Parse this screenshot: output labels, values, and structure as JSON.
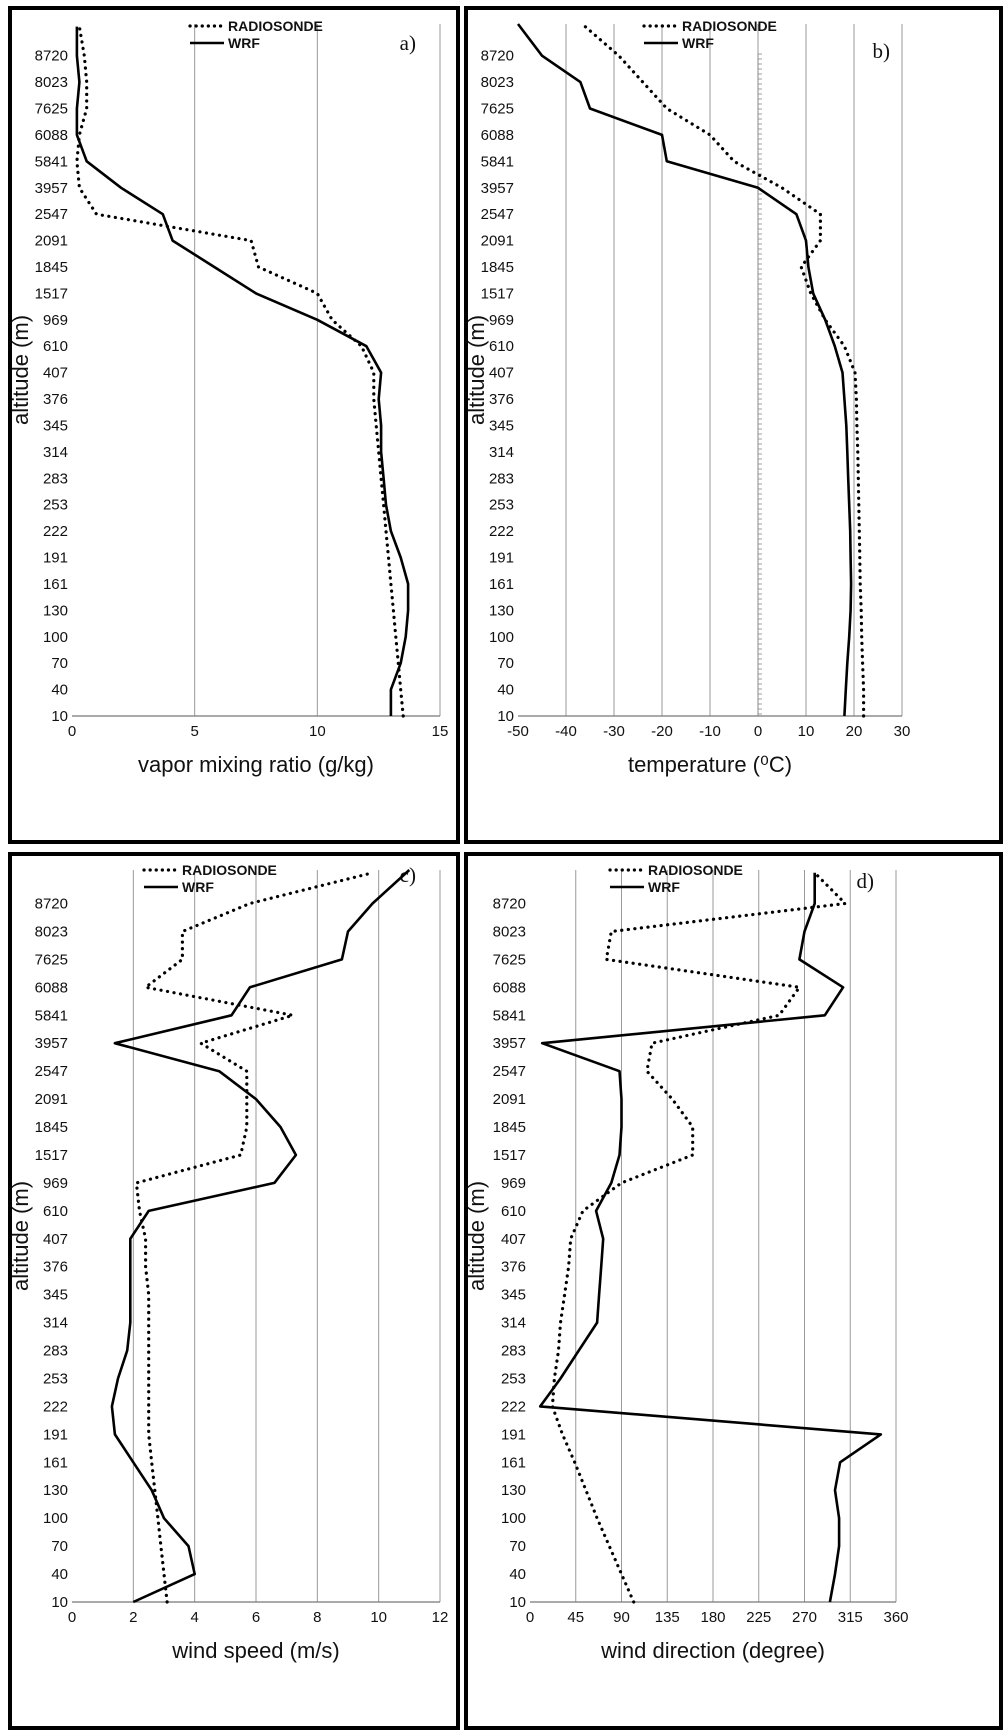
{
  "chart_data": [
    {
      "type": "line",
      "panel_label": "a)",
      "xlabel": "vapor mixing ratio (g/kg)",
      "ylabel": "altitude (m)",
      "xlim": [
        0,
        15
      ],
      "xticks": [
        "0",
        "5",
        "10",
        "15"
      ],
      "ylevels": [
        "10",
        "40",
        "70",
        "100",
        "130",
        "161",
        "191",
        "222",
        "253",
        "283",
        "314",
        "345",
        "376",
        "407",
        "610",
        "969",
        "1517",
        "1845",
        "2091",
        "2547",
        "3957",
        "5841",
        "6088",
        "7625",
        "8023",
        "8720"
      ],
      "y_index_range": [
        0,
        26.2
      ],
      "legend": [
        "RADIOSONDE",
        "WRF"
      ],
      "series": [
        {
          "name": "RADIOSONDE",
          "style": "dotted",
          "points": [
            [
              13.5,
              0
            ],
            [
              13.4,
              1
            ],
            [
              13.3,
              2
            ],
            [
              13.2,
              3
            ],
            [
              13.1,
              4
            ],
            [
              13.0,
              5
            ],
            [
              12.9,
              6
            ],
            [
              12.8,
              7
            ],
            [
              12.7,
              8
            ],
            [
              12.6,
              9
            ],
            [
              12.5,
              10
            ],
            [
              12.4,
              11
            ],
            [
              12.3,
              12
            ],
            [
              12.3,
              13
            ],
            [
              11.8,
              14
            ],
            [
              10.6,
              15
            ],
            [
              10.0,
              16
            ],
            [
              7.6,
              17
            ],
            [
              7.3,
              18
            ],
            [
              1.0,
              19
            ],
            [
              0.3,
              20
            ],
            [
              0.2,
              21
            ],
            [
              0.3,
              22
            ],
            [
              0.6,
              23
            ],
            [
              0.6,
              24
            ],
            [
              0.5,
              25
            ],
            [
              0.3,
              26.1
            ]
          ]
        },
        {
          "name": "WRF",
          "style": "solid",
          "points": [
            [
              13.0,
              0
            ],
            [
              13.0,
              1
            ],
            [
              13.4,
              2
            ],
            [
              13.6,
              3
            ],
            [
              13.7,
              4
            ],
            [
              13.7,
              5
            ],
            [
              13.4,
              6
            ],
            [
              13.0,
              7
            ],
            [
              12.8,
              8
            ],
            [
              12.7,
              9
            ],
            [
              12.6,
              10
            ],
            [
              12.6,
              11
            ],
            [
              12.5,
              12
            ],
            [
              12.6,
              13
            ],
            [
              12.0,
              14
            ],
            [
              10.0,
              15
            ],
            [
              7.5,
              16
            ],
            [
              5.8,
              17
            ],
            [
              4.1,
              18
            ],
            [
              3.7,
              19
            ],
            [
              2.0,
              20
            ],
            [
              0.6,
              21
            ],
            [
              0.2,
              22
            ],
            [
              0.2,
              23
            ],
            [
              0.3,
              24
            ],
            [
              0.2,
              25
            ],
            [
              0.2,
              26.1
            ]
          ]
        }
      ]
    },
    {
      "type": "line",
      "panel_label": "b)",
      "xlabel": "temperature (⁰C)",
      "ylabel": "altitude (m)",
      "xlim": [
        -50,
        30
      ],
      "xticks": [
        "-50",
        "-40",
        "-30",
        "-20",
        "-10",
        "0",
        "10",
        "20",
        "30"
      ],
      "ylevels": [
        "10",
        "40",
        "70",
        "100",
        "130",
        "161",
        "191",
        "222",
        "253",
        "283",
        "314",
        "345",
        "376",
        "407",
        "610",
        "969",
        "1517",
        "1845",
        "2091",
        "2547",
        "3957",
        "5841",
        "6088",
        "7625",
        "8023",
        "8720"
      ],
      "y_index_range": [
        0,
        26.2
      ],
      "legend": [
        "RADIOSONDE",
        "WRF"
      ],
      "series": [
        {
          "name": "RADIOSONDE",
          "style": "dotted",
          "points": [
            [
              22.0,
              0
            ],
            [
              22.0,
              1
            ],
            [
              21.8,
              2
            ],
            [
              21.6,
              3
            ],
            [
              21.5,
              4
            ],
            [
              21.3,
              5
            ],
            [
              21.2,
              6
            ],
            [
              21.1,
              7
            ],
            [
              21.0,
              8
            ],
            [
              20.9,
              9
            ],
            [
              20.8,
              10
            ],
            [
              20.6,
              11
            ],
            [
              20.5,
              12
            ],
            [
              20.2,
              13
            ],
            [
              18.0,
              14
            ],
            [
              14.0,
              15
            ],
            [
              11.0,
              16
            ],
            [
              9.0,
              17
            ],
            [
              13.0,
              18
            ],
            [
              13.0,
              19
            ],
            [
              5.0,
              20
            ],
            [
              -5.0,
              21
            ],
            [
              -10.0,
              22
            ],
            [
              -19.0,
              23
            ],
            [
              -24.0,
              24
            ],
            [
              -29.0,
              25
            ],
            [
              -36.0,
              26.1
            ]
          ]
        },
        {
          "name": "WRF",
          "style": "solid",
          "points": [
            [
              18.0,
              0
            ],
            [
              18.3,
              1
            ],
            [
              18.6,
              2
            ],
            [
              19.0,
              3
            ],
            [
              19.3,
              4
            ],
            [
              19.4,
              5
            ],
            [
              19.3,
              6
            ],
            [
              19.2,
              7
            ],
            [
              19.0,
              8
            ],
            [
              18.8,
              9
            ],
            [
              18.6,
              10
            ],
            [
              18.4,
              11
            ],
            [
              18.0,
              12
            ],
            [
              17.6,
              13
            ],
            [
              16.0,
              14
            ],
            [
              14.0,
              15
            ],
            [
              11.5,
              16
            ],
            [
              10.5,
              17
            ],
            [
              10.0,
              18
            ],
            [
              8.0,
              19
            ],
            [
              0.0,
              20
            ],
            [
              -19.0,
              21
            ],
            [
              -20.0,
              22
            ],
            [
              -35.0,
              23
            ],
            [
              -37.0,
              24
            ],
            [
              -45.0,
              25
            ],
            [
              -50.0,
              26.2
            ]
          ]
        }
      ]
    },
    {
      "type": "line",
      "panel_label": "c)",
      "xlabel": "wind speed (m/s)",
      "ylabel": "altitude (m)",
      "xlim": [
        0,
        12
      ],
      "xticks": [
        "0",
        "2",
        "4",
        "6",
        "8",
        "10",
        "12"
      ],
      "ylevels": [
        "10",
        "40",
        "70",
        "100",
        "130",
        "161",
        "191",
        "222",
        "253",
        "283",
        "314",
        "345",
        "376",
        "407",
        "610",
        "969",
        "1517",
        "1845",
        "2091",
        "2547",
        "3957",
        "5841",
        "6088",
        "7625",
        "8023",
        "8720"
      ],
      "y_index_range": [
        0,
        26.2
      ],
      "legend": [
        "RADIOSONDE",
        "WRF"
      ],
      "series": [
        {
          "name": "RADIOSONDE",
          "style": "dotted",
          "points": [
            [
              3.1,
              0
            ],
            [
              3.0,
              1
            ],
            [
              2.9,
              2
            ],
            [
              2.8,
              3
            ],
            [
              2.7,
              4
            ],
            [
              2.6,
              5
            ],
            [
              2.5,
              6
            ],
            [
              2.5,
              7
            ],
            [
              2.5,
              8
            ],
            [
              2.5,
              9
            ],
            [
              2.5,
              10
            ],
            [
              2.5,
              11
            ],
            [
              2.4,
              12
            ],
            [
              2.4,
              13
            ],
            [
              2.2,
              14
            ],
            [
              2.1,
              15
            ],
            [
              5.5,
              16
            ],
            [
              5.7,
              17
            ],
            [
              5.7,
              18
            ],
            [
              5.7,
              19
            ],
            [
              4.2,
              20
            ],
            [
              7.2,
              21
            ],
            [
              2.4,
              22
            ],
            [
              3.6,
              23
            ],
            [
              3.6,
              24
            ],
            [
              5.8,
              25
            ],
            [
              9.8,
              26.1
            ]
          ]
        },
        {
          "name": "WRF",
          "style": "solid",
          "points": [
            [
              2.0,
              0
            ],
            [
              4.0,
              1
            ],
            [
              3.8,
              2
            ],
            [
              3.0,
              3
            ],
            [
              2.6,
              4
            ],
            [
              2.0,
              5
            ],
            [
              1.4,
              6
            ],
            [
              1.3,
              7
            ],
            [
              1.5,
              8
            ],
            [
              1.8,
              9
            ],
            [
              1.9,
              10
            ],
            [
              1.9,
              11
            ],
            [
              1.9,
              12
            ],
            [
              1.9,
              13
            ],
            [
              2.5,
              14
            ],
            [
              6.6,
              15
            ],
            [
              7.3,
              16
            ],
            [
              6.8,
              17
            ],
            [
              6.0,
              18
            ],
            [
              4.8,
              19
            ],
            [
              1.4,
              20
            ],
            [
              5.2,
              21
            ],
            [
              5.8,
              22
            ],
            [
              8.8,
              23
            ],
            [
              9.0,
              24
            ],
            [
              9.8,
              25
            ],
            [
              11.0,
              26.2
            ]
          ]
        }
      ]
    },
    {
      "type": "line",
      "panel_label": "d)",
      "xlabel": "wind direction (degree)",
      "ylabel": "altitude (m)",
      "xlim": [
        0,
        360
      ],
      "xticks": [
        "0",
        "45",
        "90",
        "135",
        "180",
        "225",
        "270",
        "315",
        "360"
      ],
      "ylevels": [
        "10",
        "40",
        "70",
        "100",
        "130",
        "161",
        "191",
        "222",
        "253",
        "283",
        "314",
        "345",
        "376",
        "407",
        "610",
        "969",
        "1517",
        "1845",
        "2091",
        "2547",
        "3957",
        "5841",
        "6088",
        "7625",
        "8023",
        "8720"
      ],
      "y_index_range": [
        0,
        26.2
      ],
      "legend": [
        "RADIOSONDE",
        "WRF"
      ],
      "series": [
        {
          "name": "RADIOSONDE",
          "style": "dotted",
          "points": [
            [
              102,
              0
            ],
            [
              90,
              1
            ],
            [
              78,
              2
            ],
            [
              66,
              3
            ],
            [
              55,
              4
            ],
            [
              44,
              5
            ],
            [
              32,
              6
            ],
            [
              22,
              7
            ],
            [
              24,
              8
            ],
            [
              28,
              9
            ],
            [
              30,
              10
            ],
            [
              34,
              11
            ],
            [
              38,
              12
            ],
            [
              40,
              13
            ],
            [
              52,
              14
            ],
            [
              90,
              15
            ],
            [
              160,
              16
            ],
            [
              160,
              17
            ],
            [
              140,
              18
            ],
            [
              115,
              19
            ],
            [
              120,
              20
            ],
            [
              245,
              21
            ],
            [
              265,
              22
            ],
            [
              75,
              23
            ],
            [
              80,
              24
            ],
            [
              310,
              25
            ],
            [
              280,
              26.1
            ]
          ]
        },
        {
          "name": "WRF",
          "style": "solid",
          "points": [
            [
              295,
              0
            ],
            [
              300,
              1
            ],
            [
              304,
              2
            ],
            [
              304,
              3
            ],
            [
              300,
              4
            ],
            [
              305,
              5
            ],
            [
              345,
              6
            ],
            [
              10,
              7
            ],
            [
              30,
              8
            ],
            [
              48,
              9
            ],
            [
              66,
              10
            ],
            [
              68,
              11
            ],
            [
              70,
              12
            ],
            [
              72,
              13
            ],
            [
              65,
              14
            ],
            [
              80,
              15
            ],
            [
              88,
              16
            ],
            [
              90,
              17
            ],
            [
              90,
              18
            ],
            [
              88,
              19
            ],
            [
              12,
              20
            ],
            [
              290,
              21
            ],
            [
              308,
              22
            ],
            [
              265,
              23
            ],
            [
              270,
              24
            ],
            [
              280,
              25
            ],
            [
              280,
              26.1
            ]
          ]
        }
      ]
    }
  ]
}
